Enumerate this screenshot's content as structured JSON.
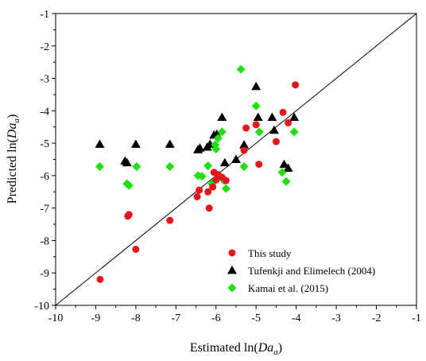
{
  "chart_data": {
    "type": "scatter",
    "xlabel_prefix": "Estimated ln(",
    "xlabel_var": "Da",
    "xlabel_sub": "a",
    "xlabel_suffix": ")",
    "ylabel_prefix": "Predicted ln(",
    "ylabel_var": "Da",
    "ylabel_sub": "a",
    "ylabel_suffix": ")",
    "xlim": [
      -10,
      -1
    ],
    "ylim": [
      -10,
      -1
    ],
    "x_ticks": [
      "-10",
      "-9",
      "-8",
      "-7",
      "-6",
      "-5",
      "-4",
      "-3",
      "-2",
      "-1"
    ],
    "y_ticks": [
      "-10",
      "-9",
      "-8",
      "-7",
      "-6",
      "-5",
      "-4",
      "-3",
      "-2",
      "-1"
    ],
    "reference_line": {
      "from": [
        -10,
        -10
      ],
      "to": [
        -1,
        -1
      ],
      "color": "#000000"
    },
    "legend_position": "bottom-right",
    "series": [
      {
        "name": "This study",
        "marker": "circle",
        "color": "#e8141c",
        "points": [
          [
            -8.89,
            -9.2
          ],
          [
            -8.0,
            -8.27
          ],
          [
            -8.2,
            -7.25
          ],
          [
            -8.17,
            -7.2
          ],
          [
            -7.15,
            -7.38
          ],
          [
            -6.47,
            -6.65
          ],
          [
            -6.42,
            -6.45
          ],
          [
            -6.2,
            -6.5
          ],
          [
            -6.17,
            -7.0
          ],
          [
            -6.08,
            -6.35
          ],
          [
            -6.0,
            -6.13
          ],
          [
            -6.05,
            -5.9
          ],
          [
            -5.95,
            -5.97
          ],
          [
            -5.85,
            -6.05
          ],
          [
            -5.75,
            -6.15
          ],
          [
            -5.3,
            -5.22
          ],
          [
            -5.25,
            -4.53
          ],
          [
            -5.0,
            -4.43
          ],
          [
            -4.93,
            -5.65
          ],
          [
            -4.5,
            -4.95
          ],
          [
            -4.33,
            -4.05
          ],
          [
            -4.2,
            -4.37
          ],
          [
            -4.02,
            -3.2
          ]
        ]
      },
      {
        "name": "Tufenkji and Elimelech (2004)",
        "marker": "triangle",
        "color": "#000000",
        "points": [
          [
            -8.9,
            -5.03
          ],
          [
            -8.27,
            -5.55
          ],
          [
            -8.22,
            -5.6
          ],
          [
            -8.0,
            -5.03
          ],
          [
            -7.15,
            -5.03
          ],
          [
            -6.45,
            -5.2
          ],
          [
            -6.4,
            -5.15
          ],
          [
            -6.22,
            -5.12
          ],
          [
            -6.15,
            -5.03
          ],
          [
            -6.05,
            -4.75
          ],
          [
            -5.98,
            -4.72
          ],
          [
            -5.85,
            -4.2
          ],
          [
            -5.78,
            -5.6
          ],
          [
            -5.5,
            -5.5
          ],
          [
            -5.3,
            -5.05
          ],
          [
            -5.0,
            -3.25
          ],
          [
            -4.95,
            -4.2
          ],
          [
            -4.6,
            -4.2
          ],
          [
            -4.55,
            -4.6
          ],
          [
            -4.3,
            -5.65
          ],
          [
            -4.2,
            -5.77
          ],
          [
            -4.05,
            -4.2
          ]
        ]
      },
      {
        "name": "Kamai et al. (2015)",
        "marker": "diamond",
        "color": "#1ee00a",
        "points": [
          [
            -8.9,
            -5.72
          ],
          [
            -8.22,
            -6.25
          ],
          [
            -8.17,
            -6.3
          ],
          [
            -7.98,
            -5.72
          ],
          [
            -7.15,
            -5.72
          ],
          [
            -6.45,
            -6.0
          ],
          [
            -6.35,
            -6.02
          ],
          [
            -6.2,
            -5.7
          ],
          [
            -6.1,
            -6.25
          ],
          [
            -6.02,
            -5.05
          ],
          [
            -6.0,
            -5.18
          ],
          [
            -5.95,
            -4.85
          ],
          [
            -5.85,
            -4.65
          ],
          [
            -5.8,
            -6.15
          ],
          [
            -5.75,
            -6.4
          ],
          [
            -5.38,
            -2.72
          ],
          [
            -5.3,
            -5.72
          ],
          [
            -5.0,
            -3.85
          ],
          [
            -4.92,
            -4.65
          ],
          [
            -4.35,
            -5.9
          ],
          [
            -4.25,
            -6.18
          ],
          [
            -4.05,
            -4.65
          ]
        ]
      }
    ]
  }
}
